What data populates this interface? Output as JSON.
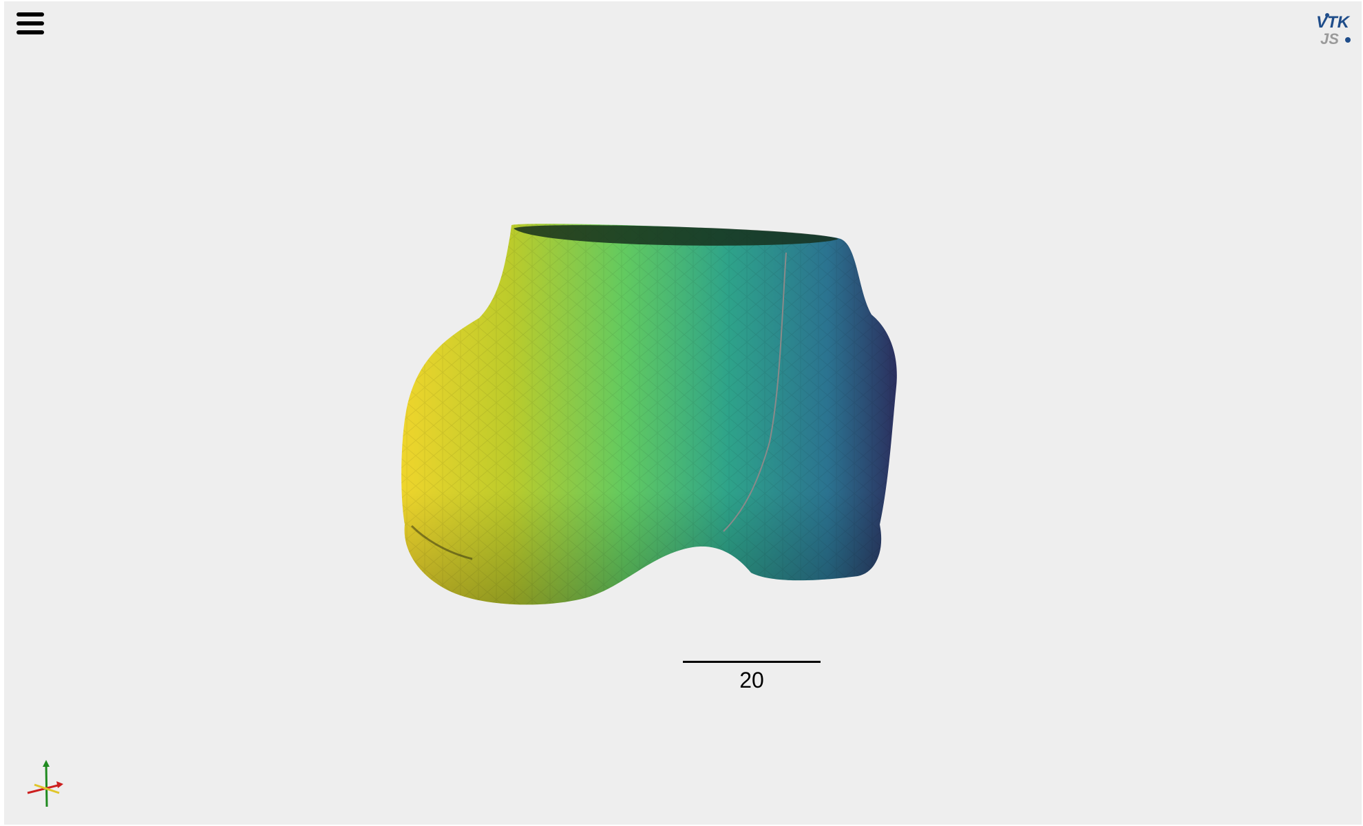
{
  "app": {
    "logo_text_top": "VTK",
    "logo_text_bottom": "JS"
  },
  "toolbar": {
    "menu_icon": "hamburger-menu-icon"
  },
  "scene": {
    "object": "3d-mesh",
    "colormap_colors": [
      "#f0d62a",
      "#b3cc2c",
      "#62c95e",
      "#2aa08c",
      "#2d6f8e",
      "#2b2d5c"
    ],
    "background_color": "#eeeeee"
  },
  "scale_bar": {
    "value": "20"
  },
  "orientation_axes": {
    "icon": "orientation-axes-icon",
    "colors": {
      "x": "#cc1f1f",
      "y": "#1f8a1f",
      "z": "#e0c52a"
    }
  }
}
